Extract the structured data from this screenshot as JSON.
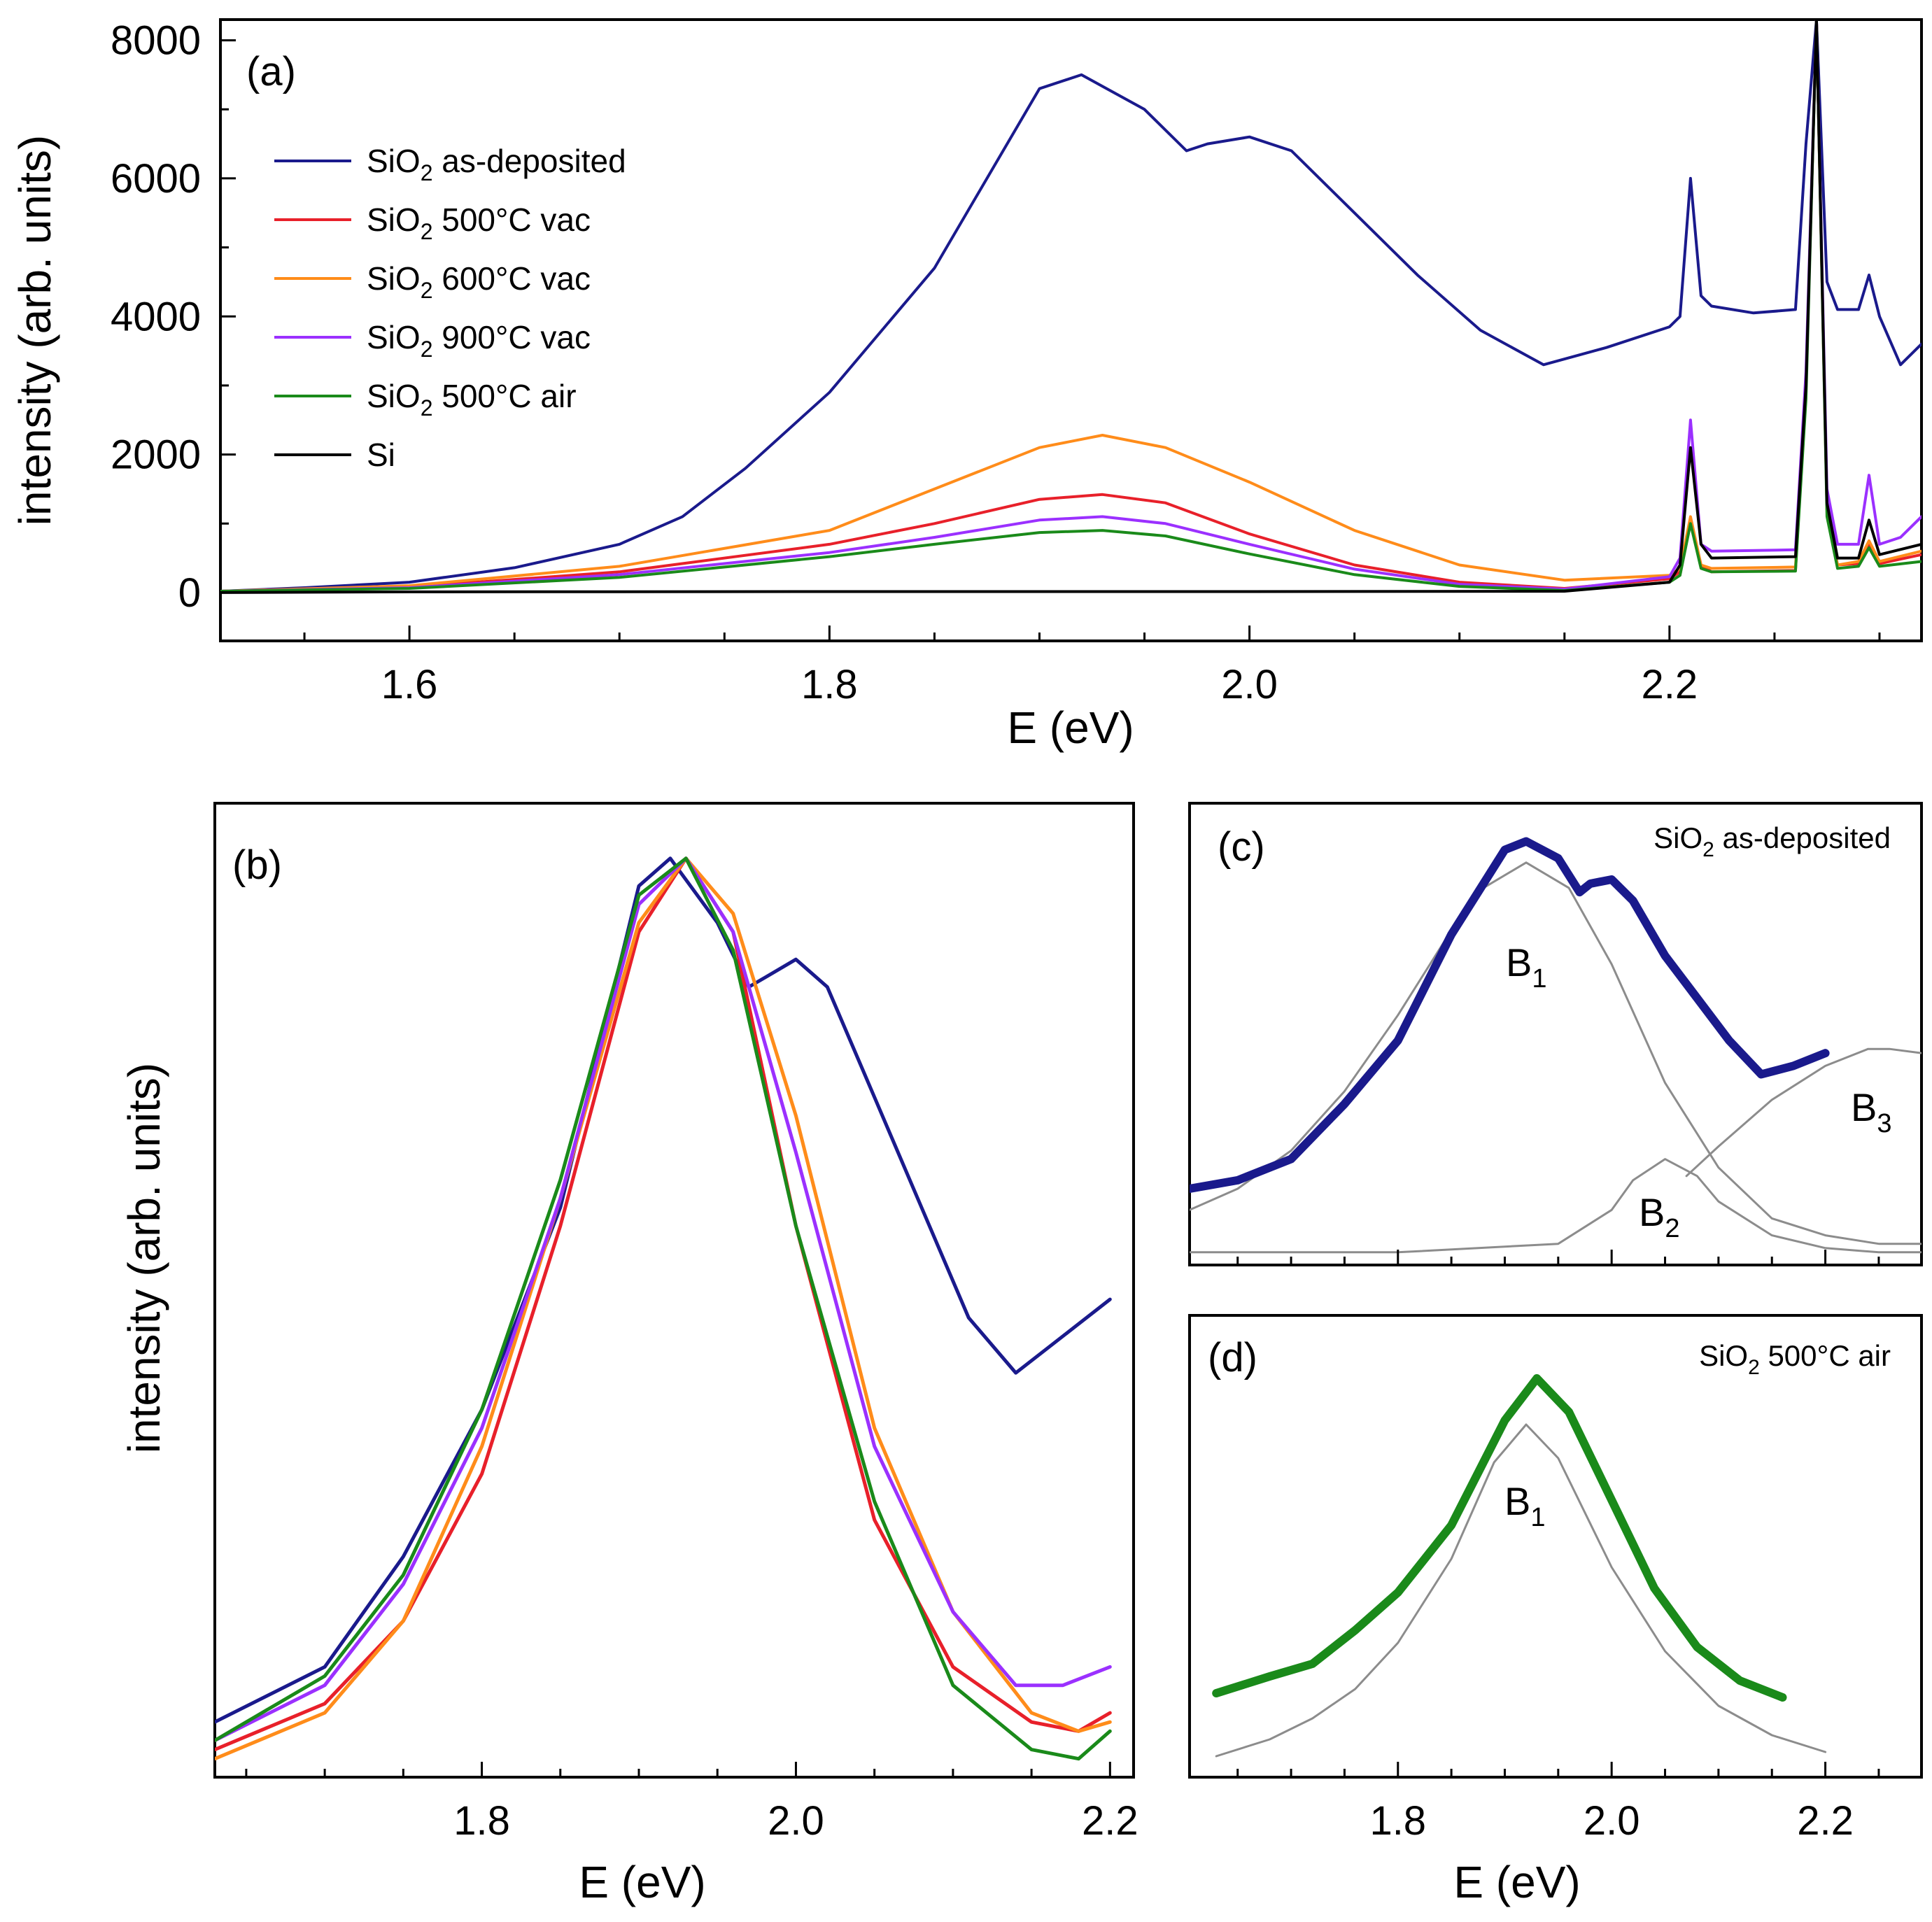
{
  "chart_data": [
    {
      "panel": "(a)",
      "type": "line",
      "xlabel": "E (eV)",
      "ylabel": "intensity (arb. units)",
      "xlim": [
        1.51,
        2.32
      ],
      "ylim": [
        -700,
        8300
      ],
      "xticks": [
        "1.6",
        "1.8",
        "2.0",
        "2.2"
      ],
      "yticks": [
        "0",
        "2000",
        "4000",
        "6000",
        "8000"
      ],
      "legend": {
        "placement": "top-left",
        "entries": [
          {
            "label": "SiO",
            "sub": "2",
            "rest": " as-deposited",
            "color": "#1a1a8c"
          },
          {
            "label": "SiO",
            "sub": "2",
            "rest": " 500°C vac",
            "color": "#e8202a"
          },
          {
            "label": "SiO",
            "sub": "2",
            "rest": " 600°C vac",
            "color": "#ff8c1a"
          },
          {
            "label": "SiO",
            "sub": "2",
            "rest": " 900°C vac",
            "color": "#9b30ff"
          },
          {
            "label": "SiO",
            "sub": "2",
            "rest": " 500°C air",
            "color": "#1a8a1a"
          },
          {
            "label": "Si",
            "sub": "",
            "rest": "",
            "color": "#000000"
          }
        ]
      },
      "series": [
        {
          "name": "SiO2 as-deposited",
          "color": "#1a1a8c",
          "x": [
            1.51,
            1.55,
            1.6,
            1.65,
            1.7,
            1.73,
            1.76,
            1.8,
            1.85,
            1.9,
            1.92,
            1.95,
            1.97,
            1.98,
            2.0,
            2.02,
            2.05,
            2.08,
            2.11,
            2.14,
            2.17,
            2.2,
            2.205,
            2.21,
            2.215,
            2.22,
            2.24,
            2.26,
            2.265,
            2.27,
            2.275,
            2.28,
            2.29,
            2.295,
            2.3,
            2.31,
            2.32
          ],
          "y": [
            20,
            70,
            150,
            360,
            700,
            1100,
            1800,
            2900,
            4700,
            7300,
            7500,
            7000,
            6400,
            6500,
            6600,
            6400,
            5500,
            4600,
            3800,
            3300,
            3550,
            3850,
            4000,
            6000,
            4300,
            4150,
            4050,
            4100,
            6500,
            8300,
            4500,
            4100,
            4100,
            4600,
            4000,
            3300,
            3600
          ]
        },
        {
          "name": "SiO2 500°C vac",
          "color": "#e8202a",
          "x": [
            1.51,
            1.6,
            1.7,
            1.8,
            1.85,
            1.9,
            1.93,
            1.96,
            2.0,
            2.05,
            2.1,
            2.15,
            2.2,
            2.205,
            2.21,
            2.215,
            2.22,
            2.26,
            2.265,
            2.27,
            2.275,
            2.28,
            2.29,
            2.295,
            2.3,
            2.32
          ],
          "y": [
            20,
            80,
            300,
            700,
            1000,
            1350,
            1420,
            1300,
            850,
            400,
            150,
            60,
            200,
            300,
            1050,
            400,
            300,
            320,
            3000,
            8300,
            1200,
            400,
            420,
            700,
            420,
            550
          ]
        },
        {
          "name": "SiO2 600°C vac",
          "color": "#ff8c1a",
          "x": [
            1.51,
            1.6,
            1.7,
            1.8,
            1.85,
            1.9,
            1.93,
            1.96,
            2.0,
            2.05,
            2.1,
            2.15,
            2.2,
            2.205,
            2.21,
            2.215,
            2.22,
            2.26,
            2.265,
            2.27,
            2.275,
            2.28,
            2.29,
            2.295,
            2.3,
            2.32
          ],
          "y": [
            20,
            100,
            380,
            900,
            1500,
            2100,
            2280,
            2100,
            1600,
            900,
            400,
            180,
            250,
            350,
            1100,
            400,
            350,
            370,
            3000,
            8300,
            1200,
            400,
            450,
            750,
            450,
            600
          ]
        },
        {
          "name": "SiO2 900°C vac",
          "color": "#9b30ff",
          "x": [
            1.51,
            1.6,
            1.7,
            1.8,
            1.85,
            1.9,
            1.93,
            1.96,
            2.0,
            2.05,
            2.1,
            2.15,
            2.2,
            2.205,
            2.21,
            2.215,
            2.22,
            2.26,
            2.265,
            2.27,
            2.275,
            2.28,
            2.29,
            2.295,
            2.3,
            2.31,
            2.32
          ],
          "y": [
            20,
            70,
            260,
            580,
            800,
            1050,
            1100,
            1000,
            700,
            340,
            120,
            50,
            230,
            500,
            2500,
            700,
            600,
            620,
            3200,
            8300,
            1500,
            700,
            700,
            1700,
            700,
            800,
            1100
          ]
        },
        {
          "name": "SiO2 500°C air",
          "color": "#1a8a1a",
          "x": [
            1.51,
            1.6,
            1.7,
            1.8,
            1.85,
            1.9,
            1.93,
            1.96,
            2.0,
            2.05,
            2.1,
            2.15,
            2.2,
            2.205,
            2.21,
            2.215,
            2.22,
            2.26,
            2.265,
            2.27,
            2.275,
            2.28,
            2.29,
            2.295,
            2.3,
            2.32
          ],
          "y": [
            20,
            60,
            220,
            520,
            700,
            870,
            900,
            820,
            560,
            260,
            90,
            30,
            150,
            250,
            1000,
            350,
            300,
            310,
            2800,
            8300,
            1100,
            350,
            380,
            650,
            380,
            450
          ]
        },
        {
          "name": "Si",
          "color": "#000000",
          "x": [
            1.51,
            1.6,
            1.8,
            2.0,
            2.15,
            2.2,
            2.205,
            2.21,
            2.215,
            2.22,
            2.26,
            2.265,
            2.27,
            2.275,
            2.28,
            2.29,
            2.295,
            2.3,
            2.32
          ],
          "y": [
            0,
            10,
            15,
            15,
            20,
            150,
            400,
            2100,
            700,
            500,
            520,
            3000,
            8300,
            1300,
            500,
            500,
            1050,
            550,
            700
          ]
        }
      ]
    },
    {
      "panel": "(b)",
      "type": "line",
      "xlabel": "E (eV)",
      "ylabel": "intensity (arb. units)",
      "xlim": [
        1.63,
        2.215
      ],
      "ylim": [
        0,
        1.06
      ],
      "xticks": [
        "1.8",
        "2.0",
        "2.2"
      ],
      "series": [
        {
          "name": "SiO2 as-deposited",
          "color": "#1a1a8c",
          "x": [
            1.63,
            1.7,
            1.75,
            1.8,
            1.85,
            1.9,
            1.92,
            1.95,
            1.97,
            1.98,
            2.0,
            2.02,
            2.05,
            2.08,
            2.11,
            2.14,
            2.17,
            2.2
          ],
          "y": [
            0.06,
            0.12,
            0.24,
            0.4,
            0.62,
            0.97,
            1.0,
            0.93,
            0.86,
            0.87,
            0.89,
            0.86,
            0.74,
            0.62,
            0.5,
            0.44,
            0.48,
            0.52
          ]
        },
        {
          "name": "SiO2 500°C vac",
          "color": "#e8202a",
          "x": [
            1.63,
            1.7,
            1.75,
            1.8,
            1.85,
            1.9,
            1.93,
            1.96,
            2.0,
            2.05,
            2.1,
            2.15,
            2.18,
            2.2
          ],
          "y": [
            0.03,
            0.08,
            0.17,
            0.33,
            0.6,
            0.92,
            1.0,
            0.92,
            0.6,
            0.28,
            0.12,
            0.06,
            0.05,
            0.07
          ]
        },
        {
          "name": "SiO2 600°C vac",
          "color": "#ff8c1a",
          "x": [
            1.63,
            1.7,
            1.75,
            1.8,
            1.85,
            1.9,
            1.93,
            1.96,
            2.0,
            2.05,
            2.1,
            2.15,
            2.18,
            2.2
          ],
          "y": [
            0.02,
            0.07,
            0.17,
            0.36,
            0.63,
            0.93,
            1.0,
            0.94,
            0.72,
            0.38,
            0.18,
            0.07,
            0.05,
            0.06
          ]
        },
        {
          "name": "SiO2 900°C vac",
          "color": "#9b30ff",
          "x": [
            1.63,
            1.7,
            1.75,
            1.8,
            1.85,
            1.9,
            1.93,
            1.96,
            2.0,
            2.05,
            2.1,
            2.14,
            2.17,
            2.2
          ],
          "y": [
            0.04,
            0.1,
            0.21,
            0.38,
            0.63,
            0.95,
            1.0,
            0.92,
            0.68,
            0.36,
            0.18,
            0.1,
            0.1,
            0.12
          ]
        },
        {
          "name": "SiO2 500°C air",
          "color": "#1a8a1a",
          "x": [
            1.63,
            1.7,
            1.75,
            1.8,
            1.85,
            1.9,
            1.93,
            1.96,
            2.0,
            2.05,
            2.1,
            2.15,
            2.18,
            2.2
          ],
          "y": [
            0.04,
            0.11,
            0.22,
            0.4,
            0.65,
            0.96,
            1.0,
            0.9,
            0.6,
            0.3,
            0.1,
            0.03,
            0.02,
            0.05
          ]
        }
      ]
    },
    {
      "panel": "(c)",
      "type": "line",
      "title": "SiO2 as-deposited",
      "xlim": [
        1.605,
        2.29
      ],
      "ylim": [
        -0.03,
        1.06
      ],
      "xticks": [
        "1.8",
        "2.0",
        "2.2"
      ],
      "components": [
        "B1",
        "B2",
        "B3"
      ],
      "series": [
        {
          "name": "data",
          "color": "#1a1a8c",
          "x": [
            1.605,
            1.65,
            1.7,
            1.75,
            1.8,
            1.85,
            1.9,
            1.92,
            1.95,
            1.97,
            1.98,
            2.0,
            2.02,
            2.05,
            2.08,
            2.11,
            2.14,
            2.17,
            2.2
          ],
          "y": [
            0.15,
            0.17,
            0.22,
            0.35,
            0.5,
            0.75,
            0.95,
            0.97,
            0.93,
            0.85,
            0.87,
            0.88,
            0.83,
            0.7,
            0.6,
            0.5,
            0.42,
            0.44,
            0.47
          ]
        },
        {
          "name": "B1",
          "color": "#8c8c8c",
          "x": [
            1.605,
            1.65,
            1.7,
            1.75,
            1.8,
            1.85,
            1.88,
            1.92,
            1.96,
            2.0,
            2.05,
            2.1,
            2.15,
            2.2,
            2.25,
            2.29
          ],
          "y": [
            0.1,
            0.15,
            0.24,
            0.38,
            0.56,
            0.76,
            0.86,
            0.92,
            0.86,
            0.68,
            0.4,
            0.2,
            0.08,
            0.04,
            0.02,
            0.02
          ]
        },
        {
          "name": "B2",
          "color": "#8c8c8c",
          "x": [
            1.605,
            1.8,
            1.95,
            2.0,
            2.02,
            2.05,
            2.08,
            2.1,
            2.15,
            2.2,
            2.25,
            2.29
          ],
          "y": [
            0.0,
            0.0,
            0.02,
            0.1,
            0.17,
            0.22,
            0.18,
            0.12,
            0.04,
            0.01,
            0.0,
            0.0
          ]
        },
        {
          "name": "B3",
          "color": "#8c8c8c",
          "x": [
            2.07,
            2.1,
            2.15,
            2.2,
            2.24,
            2.26,
            2.29
          ],
          "y": [
            0.18,
            0.25,
            0.36,
            0.44,
            0.48,
            0.48,
            0.47
          ]
        }
      ]
    },
    {
      "panel": "(d)",
      "type": "line",
      "title": "SiO2 500°C air",
      "xlabel": "E (eV)",
      "xlim": [
        1.605,
        2.29
      ],
      "ylim": [
        0,
        1.1
      ],
      "xticks": [
        "1.8",
        "2.0",
        "2.2"
      ],
      "components": [
        "B1"
      ],
      "series": [
        {
          "name": "data",
          "color": "#1a8a1a",
          "x": [
            1.63,
            1.68,
            1.72,
            1.76,
            1.8,
            1.85,
            1.9,
            1.93,
            1.96,
            2.0,
            2.04,
            2.08,
            2.12,
            2.16
          ],
          "y": [
            0.2,
            0.24,
            0.27,
            0.35,
            0.44,
            0.6,
            0.85,
            0.95,
            0.87,
            0.66,
            0.45,
            0.31,
            0.23,
            0.19
          ]
        },
        {
          "name": "B1",
          "color": "#8c8c8c",
          "x": [
            1.63,
            1.68,
            1.72,
            1.76,
            1.8,
            1.85,
            1.89,
            1.92,
            1.95,
            2.0,
            2.05,
            2.1,
            2.15,
            2.2
          ],
          "y": [
            0.05,
            0.09,
            0.14,
            0.21,
            0.32,
            0.52,
            0.75,
            0.84,
            0.76,
            0.5,
            0.3,
            0.17,
            0.1,
            0.06
          ]
        }
      ]
    }
  ],
  "panels": {
    "a": {
      "label": "(a)"
    },
    "b": {
      "label": "(b)"
    },
    "c": {
      "label": "(c)",
      "title_main": "SiO",
      "title_sub": "2",
      "title_rest": " as-deposited",
      "b1_main": "B",
      "b1_sub": "1",
      "b2_main": "B",
      "b2_sub": "2",
      "b3_main": "B",
      "b3_sub": "3"
    },
    "d": {
      "label": "(d)",
      "title_main": "SiO",
      "title_sub": "2",
      "title_rest": " 500°C air",
      "b1_main": "B",
      "b1_sub": "1"
    }
  },
  "axis_labels": {
    "a_x": "E (eV)",
    "a_y": "intensity (arb. units)",
    "b_x": "E (eV)",
    "b_y": "intensity (arb. units)",
    "d_x": "E (eV)"
  }
}
